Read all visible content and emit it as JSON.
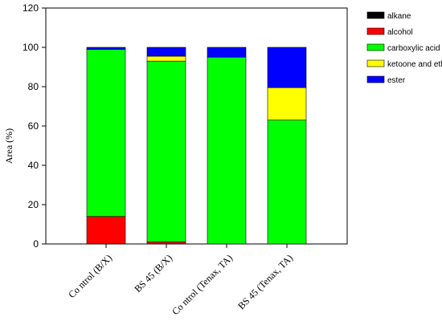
{
  "chart_data": {
    "type": "bar",
    "stacked": true,
    "title": "",
    "xlabel": "",
    "ylabel": "Area (%)",
    "ylim": [
      0,
      120
    ],
    "yticks": [
      0,
      20,
      40,
      60,
      80,
      100,
      120
    ],
    "categories": [
      "Co ntrol (B/X)",
      "BS 45 (B/X)",
      "Co ntrol (Tenax, TA)",
      "BS 45  (Tenax, TA)"
    ],
    "series": [
      {
        "name": "alkane",
        "color": "#000000",
        "values": [
          0,
          0,
          0,
          0
        ]
      },
      {
        "name": "alcohol",
        "color": "#ff0000",
        "values": [
          14,
          1,
          0,
          0
        ]
      },
      {
        "name": "carboxylic acid",
        "color": "#00ff00",
        "values": [
          85,
          92,
          95,
          63
        ]
      },
      {
        "name": "ketoone and ether",
        "color": "#ffff00",
        "values": [
          0,
          2.5,
          0,
          16.5
        ]
      },
      {
        "name": "ester",
        "color": "#0000ff",
        "values": [
          1,
          4.5,
          5,
          20.5
        ]
      }
    ],
    "legend_position": "top-right",
    "grid": false
  }
}
